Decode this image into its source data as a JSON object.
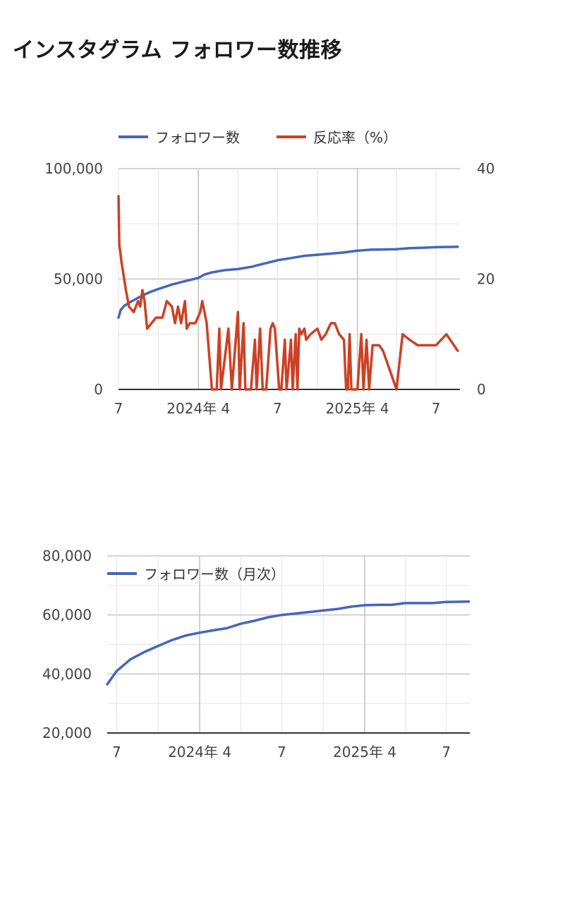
{
  "page": {
    "title": "インスタグラム フォロワー数推移"
  },
  "colors": {
    "followers": "#4466bf",
    "response": "#cc4125",
    "grid": "#e3e3e3",
    "major_grid": "#c6c6c6",
    "axis": "#333333"
  },
  "chart_data": [
    {
      "type": "line",
      "legend": [
        "フォロワー数",
        "反応率（%）"
      ],
      "legend_position": "top",
      "x_range": [
        "2023-07-01",
        "2025-08-25"
      ],
      "x_ticks": [
        {
          "date": "2023-07-01",
          "label": "7",
          "major": false
        },
        {
          "date": "2023-10-01",
          "label": "",
          "major": false
        },
        {
          "date": "2024-01-01",
          "label": "2024年 4",
          "major": true
        },
        {
          "date": "2024-04-01",
          "label": "",
          "major": false
        },
        {
          "date": "2024-07-01",
          "label": "7",
          "major": false
        },
        {
          "date": "2024-10-01",
          "label": "",
          "major": false
        },
        {
          "date": "2025-01-01",
          "label": "2025年 4",
          "major": true
        },
        {
          "date": "2025-04-01",
          "label": "",
          "major": false
        },
        {
          "date": "2025-07-01",
          "label": "7",
          "major": false
        }
      ],
      "y_left": {
        "ticks": [
          "100,000",
          "50,000",
          "0"
        ],
        "ylim": [
          0,
          100000
        ]
      },
      "y_right": {
        "ticks": [
          "40",
          "20",
          "0"
        ],
        "ylim": [
          0,
          40
        ]
      },
      "series": [
        {
          "name": "フォロワー数",
          "axis": "left",
          "points": [
            [
              "2023-07-01",
              32500
            ],
            [
              "2023-07-06",
              36000
            ],
            [
              "2023-07-15",
              38000
            ],
            [
              "2023-08-01",
              40000
            ],
            [
              "2023-08-20",
              42000
            ],
            [
              "2023-09-10",
              44000
            ],
            [
              "2023-10-01",
              45500
            ],
            [
              "2023-11-01",
              47500
            ],
            [
              "2023-12-01",
              49000
            ],
            [
              "2024-01-01",
              50500
            ],
            [
              "2024-01-15",
              52000
            ],
            [
              "2024-02-01",
              53000
            ],
            [
              "2024-03-01",
              54000
            ],
            [
              "2024-04-01",
              54500
            ],
            [
              "2024-05-01",
              55500
            ],
            [
              "2024-06-01",
              57000
            ],
            [
              "2024-07-01",
              58500
            ],
            [
              "2024-08-01",
              59500
            ],
            [
              "2024-09-01",
              60500
            ],
            [
              "2024-10-01",
              61000
            ],
            [
              "2024-11-01",
              61500
            ],
            [
              "2024-12-01",
              62000
            ],
            [
              "2025-01-01",
              62800
            ],
            [
              "2025-02-01",
              63300
            ],
            [
              "2025-03-01",
              63400
            ],
            [
              "2025-04-01",
              63500
            ],
            [
              "2025-05-01",
              64000
            ],
            [
              "2025-06-01",
              64200
            ],
            [
              "2025-07-01",
              64400
            ],
            [
              "2025-08-20",
              64600
            ]
          ]
        },
        {
          "name": "反応率（%）",
          "axis": "right",
          "points": [
            [
              "2023-07-01",
              35
            ],
            [
              "2023-07-03",
              26
            ],
            [
              "2023-07-05",
              25
            ],
            [
              "2023-07-08",
              23
            ],
            [
              "2023-07-12",
              21
            ],
            [
              "2023-07-18",
              18
            ],
            [
              "2023-07-25",
              15
            ],
            [
              "2023-08-05",
              14
            ],
            [
              "2023-08-10",
              15
            ],
            [
              "2023-08-15",
              16
            ],
            [
              "2023-08-20",
              15
            ],
            [
              "2023-08-25",
              18
            ],
            [
              "2023-08-30",
              16
            ],
            [
              "2023-09-05",
              11
            ],
            [
              "2023-09-15",
              12
            ],
            [
              "2023-09-25",
              13
            ],
            [
              "2023-10-10",
              13
            ],
            [
              "2023-10-20",
              16
            ],
            [
              "2023-11-01",
              15
            ],
            [
              "2023-11-08",
              12
            ],
            [
              "2023-11-15",
              15
            ],
            [
              "2023-11-22",
              12
            ],
            [
              "2023-12-01",
              16
            ],
            [
              "2023-12-05",
              11
            ],
            [
              "2023-12-12",
              12
            ],
            [
              "2023-12-20",
              12
            ],
            [
              "2023-12-25",
              12
            ],
            [
              "2024-01-05",
              14
            ],
            [
              "2024-01-10",
              16
            ],
            [
              "2024-01-20",
              12
            ],
            [
              "2024-02-01",
              0
            ],
            [
              "2024-02-12",
              0
            ],
            [
              "2024-02-18",
              11
            ],
            [
              "2024-02-22",
              0
            ],
            [
              "2024-03-10",
              11
            ],
            [
              "2024-03-18",
              0
            ],
            [
              "2024-04-01",
              14
            ],
            [
              "2024-04-05",
              0
            ],
            [
              "2024-04-14",
              12
            ],
            [
              "2024-04-18",
              0
            ],
            [
              "2024-05-01",
              0
            ],
            [
              "2024-05-10",
              9
            ],
            [
              "2024-05-14",
              0
            ],
            [
              "2024-05-22",
              11
            ],
            [
              "2024-05-28",
              0
            ],
            [
              "2024-06-05",
              0
            ],
            [
              "2024-06-15",
              11
            ],
            [
              "2024-06-20",
              12
            ],
            [
              "2024-06-25",
              11
            ],
            [
              "2024-07-05",
              0
            ],
            [
              "2024-07-10",
              0
            ],
            [
              "2024-07-18",
              9
            ],
            [
              "2024-07-22",
              0
            ],
            [
              "2024-08-01",
              9
            ],
            [
              "2024-08-05",
              0
            ],
            [
              "2024-08-12",
              10
            ],
            [
              "2024-08-16",
              0
            ],
            [
              "2024-08-20",
              11
            ],
            [
              "2024-08-25",
              10
            ],
            [
              "2024-09-01",
              11
            ],
            [
              "2024-09-05",
              9
            ],
            [
              "2024-09-15",
              10
            ],
            [
              "2024-10-01",
              11
            ],
            [
              "2024-10-10",
              9
            ],
            [
              "2024-10-20",
              10
            ],
            [
              "2024-11-01",
              12
            ],
            [
              "2024-11-10",
              12
            ],
            [
              "2024-11-20",
              10
            ],
            [
              "2024-12-01",
              9
            ],
            [
              "2024-12-06",
              0
            ],
            [
              "2024-12-10",
              0
            ],
            [
              "2024-12-14",
              10
            ],
            [
              "2024-12-18",
              0
            ],
            [
              "2025-01-01",
              0
            ],
            [
              "2025-01-10",
              10
            ],
            [
              "2025-01-15",
              0
            ],
            [
              "2025-01-22",
              9
            ],
            [
              "2025-01-28",
              0
            ],
            [
              "2025-02-05",
              8
            ],
            [
              "2025-02-20",
              8
            ],
            [
              "2025-03-01",
              7
            ],
            [
              "2025-04-01",
              0
            ],
            [
              "2025-04-15",
              10
            ],
            [
              "2025-05-01",
              9
            ],
            [
              "2025-05-20",
              8
            ],
            [
              "2025-06-15",
              8
            ],
            [
              "2025-07-01",
              8
            ],
            [
              "2025-07-25",
              10
            ],
            [
              "2025-08-20",
              7
            ]
          ]
        }
      ]
    },
    {
      "type": "line",
      "legend": [
        "フォロワー数（月次）"
      ],
      "legend_position": "top-left",
      "x_range": [
        "2023-06-10",
        "2025-08-22"
      ],
      "x_ticks": [
        {
          "date": "2023-07-01",
          "label": "7",
          "major": false
        },
        {
          "date": "2023-10-01",
          "label": "",
          "major": false
        },
        {
          "date": "2024-01-01",
          "label": "2024年 4",
          "major": true
        },
        {
          "date": "2024-04-01",
          "label": "",
          "major": false
        },
        {
          "date": "2024-07-01",
          "label": "7",
          "major": false
        },
        {
          "date": "2024-10-01",
          "label": "",
          "major": false
        },
        {
          "date": "2025-01-01",
          "label": "2025年 4",
          "major": true
        },
        {
          "date": "2025-04-01",
          "label": "",
          "major": false
        },
        {
          "date": "2025-07-01",
          "label": "7",
          "major": false
        }
      ],
      "y_left": {
        "ticks": [
          "80,000",
          "60,000",
          "40,000",
          "20,000"
        ],
        "ylim": [
          20000,
          80000
        ],
        "minor_step": 10000
      },
      "series": [
        {
          "name": "フォロワー数（月次）",
          "axis": "left",
          "points": [
            [
              "2023-06-10",
              36500
            ],
            [
              "2023-07-01",
              41000
            ],
            [
              "2023-08-01",
              45000
            ],
            [
              "2023-09-01",
              47500
            ],
            [
              "2023-10-01",
              49500
            ],
            [
              "2023-11-01",
              51500
            ],
            [
              "2023-12-01",
              53000
            ],
            [
              "2024-01-01",
              54000
            ],
            [
              "2024-02-01",
              54800
            ],
            [
              "2024-03-01",
              55500
            ],
            [
              "2024-04-01",
              57000
            ],
            [
              "2024-05-01",
              58000
            ],
            [
              "2024-06-01",
              59200
            ],
            [
              "2024-07-01",
              60000
            ],
            [
              "2024-08-01",
              60500
            ],
            [
              "2024-09-01",
              61000
            ],
            [
              "2024-10-01",
              61500
            ],
            [
              "2024-11-01",
              62000
            ],
            [
              "2024-12-01",
              62800
            ],
            [
              "2025-01-01",
              63300
            ],
            [
              "2025-02-01",
              63400
            ],
            [
              "2025-03-01",
              63400
            ],
            [
              "2025-04-01",
              64000
            ],
            [
              "2025-05-01",
              64000
            ],
            [
              "2025-06-01",
              64000
            ],
            [
              "2025-07-01",
              64400
            ],
            [
              "2025-08-20",
              64500
            ]
          ]
        }
      ]
    }
  ]
}
